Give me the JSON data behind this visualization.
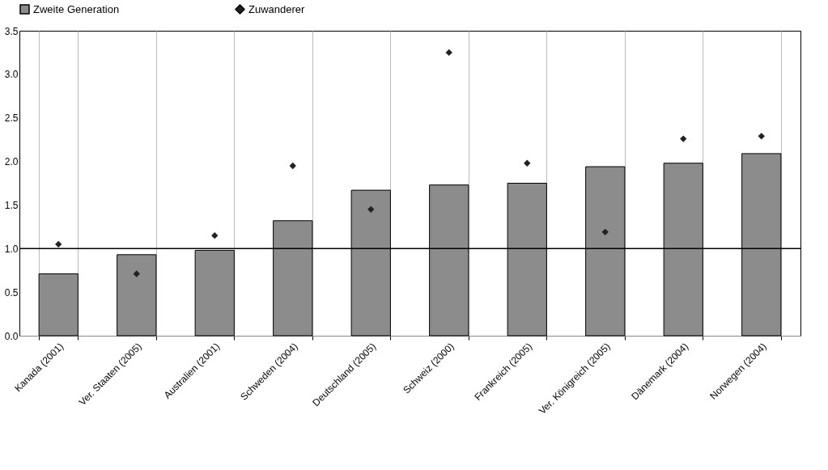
{
  "chart_data": {
    "type": "bar",
    "categories": [
      "Kanada (2001)",
      "Ver. Staaten (2005)",
      "Australien (2001)",
      "Schweden (2004)",
      "Deutschland (2005)",
      "Schweiz (2000)",
      "Frankreich (2005)",
      "Ver. Königreich (2005)",
      "Dänemark (2004)",
      "Norwegen (2004)"
    ],
    "series": [
      {
        "name": "Zweite Generation",
        "color": "#8c8c8c",
        "values": [
          0.71,
          0.93,
          0.98,
          1.32,
          1.67,
          1.73,
          1.75,
          1.94,
          1.98,
          2.09
        ]
      },
      {
        "name": "Zuwanderer",
        "type": "scatter",
        "color": "#222222",
        "values": [
          1.05,
          0.71,
          1.15,
          1.95,
          1.45,
          3.25,
          1.98,
          1.19,
          2.26,
          2.29
        ]
      }
    ],
    "ylim": [
      0,
      3.5
    ],
    "yticks": [
      {
        "value": 0,
        "label": "0.0"
      },
      {
        "value": 0.5,
        "label": "0.5"
      },
      {
        "value": 1,
        "label": "1.0"
      },
      {
        "value": 1.5,
        "label": "1.5"
      },
      {
        "value": 2,
        "label": "2.0"
      },
      {
        "value": 2.5,
        "label": "2.5"
      },
      {
        "value": 3,
        "label": "3.0"
      },
      {
        "value": 3.5,
        "label": "3.5"
      }
    ],
    "ref_lines": [
      {
        "axis": "y",
        "value": 1,
        "color": "#000000"
      }
    ],
    "grid": "x",
    "legend": "top",
    "marker": "diamond"
  }
}
